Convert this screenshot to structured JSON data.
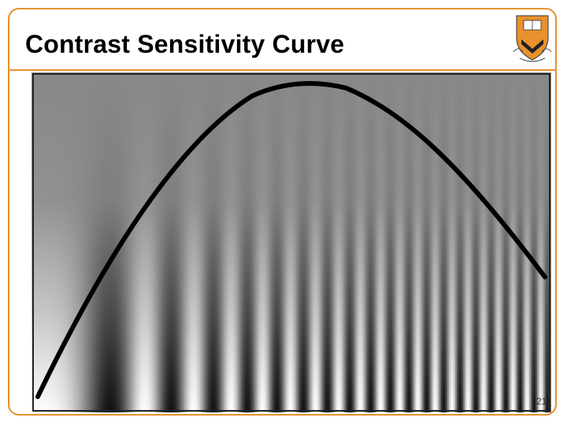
{
  "slide": {
    "title": "Contrast Sensitivity Curve",
    "number": "21"
  },
  "colors": {
    "accent": "#e8912d",
    "shield": "#e8912d",
    "curve": "#000000",
    "grating_mid_gray": "#888888"
  },
  "logo": {
    "icon": "princeton-shield-icon"
  },
  "figure": {
    "kind": "campbell-robson-contrast-sensitivity-chart"
  }
}
